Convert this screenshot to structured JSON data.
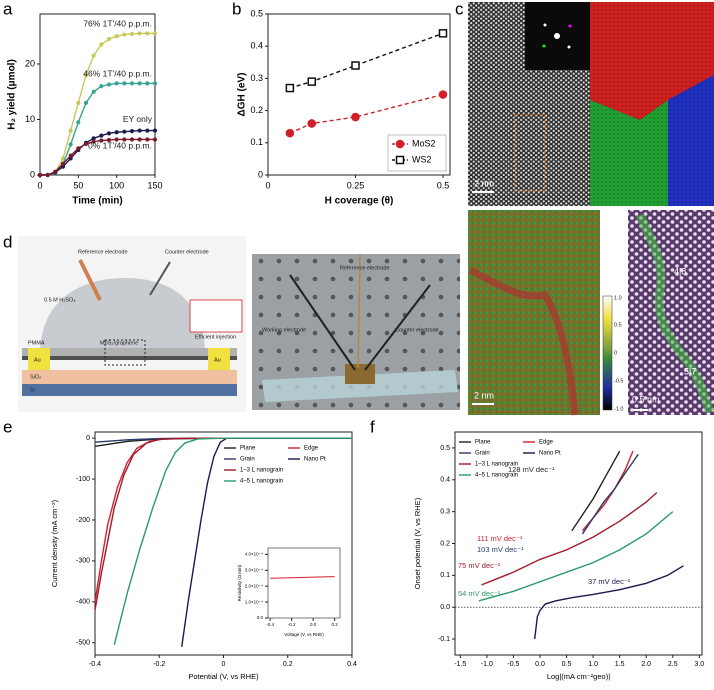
{
  "panel_labels": [
    "a",
    "b",
    "c",
    "d",
    "e",
    "f"
  ],
  "chart_data": [
    {
      "type": "line",
      "xlabel": "Time (min)",
      "ylabel": "H₂ yield (μmol)",
      "xlim": [
        0,
        150
      ],
      "ylim": [
        0,
        29
      ],
      "xticks": [
        0,
        50,
        100,
        150
      ],
      "yticks": [
        0,
        10,
        20
      ],
      "legend": "on-line",
      "x": [
        0,
        10,
        20,
        30,
        40,
        50,
        60,
        70,
        80,
        90,
        100,
        110,
        120,
        130,
        140,
        150
      ],
      "series": [
        {
          "name": "76% 1T'/40 p.p.m.",
          "color": "#c8c85a",
          "marker": "circle",
          "values": [
            0,
            0,
            0.5,
            3,
            8,
            13,
            18,
            21.5,
            23.5,
            24.5,
            25,
            25.3,
            25.4,
            25.5,
            25.5,
            25.5
          ]
        },
        {
          "name": "46% 1T'/40 p.p.m.",
          "color": "#3aa396",
          "marker": "circle",
          "values": [
            0,
            0,
            0.4,
            2,
            5.5,
            9.5,
            13,
            15,
            16,
            16.3,
            16.5,
            16.5,
            16.5,
            16.5,
            16.5,
            16.5
          ]
        },
        {
          "name": "EY only",
          "color": "#1c1c4c",
          "marker": "circle",
          "values": [
            0,
            0,
            0.5,
            1.5,
            3,
            4.5,
            5.8,
            6.6,
            7.1,
            7.5,
            7.7,
            7.8,
            7.9,
            8,
            8,
            8
          ]
        },
        {
          "name": "0% 1T'/40 p.p.m.",
          "color": "#7a1a2a",
          "marker": "circle",
          "values": [
            0,
            0,
            0.6,
            2,
            3.5,
            4.8,
            5.6,
            6,
            6.2,
            6.3,
            6.4,
            6.4,
            6.4,
            6.4,
            6.4,
            6.4
          ]
        }
      ]
    },
    {
      "type": "line",
      "xlabel": "H coverage (θ)",
      "ylabel": "ΔGH (eV)",
      "xlim": [
        0,
        0.52
      ],
      "ylim": [
        0,
        0.5
      ],
      "xticks": [
        0,
        0.25,
        0.5
      ],
      "yticks": [
        0,
        0.1,
        0.2,
        0.3,
        0.4,
        0.5
      ],
      "legend": "lower right",
      "x": [
        0.0625,
        0.125,
        0.25,
        0.5
      ],
      "series": [
        {
          "name": "MoS2",
          "color": "#d0202a",
          "marker": "circle",
          "dashed": true,
          "values": [
            0.13,
            0.16,
            0.18,
            0.25
          ]
        },
        {
          "name": "WS2",
          "color": "#111111",
          "marker": "square",
          "dashed": true,
          "values": [
            0.27,
            0.29,
            0.34,
            0.44
          ]
        }
      ]
    },
    {
      "type": "line",
      "xlabel": "Potential (V, vs RHE)",
      "ylabel": "Current density (mA cm⁻²)",
      "xlim": [
        -0.4,
        0.4
      ],
      "ylim": [
        -530,
        15
      ],
      "xticks": [
        -0.4,
        -0.2,
        0,
        0.2,
        0.4
      ],
      "yticks": [
        -500,
        -400,
        -300,
        -200,
        -100,
        0
      ],
      "legend": "upper right",
      "series": [
        {
          "name": "Plane",
          "color": "#222222",
          "x": [
            -0.4,
            -0.3,
            -0.2,
            0,
            0.4
          ],
          "values": [
            -20,
            -8,
            -2,
            0,
            0
          ]
        },
        {
          "name": "Edge",
          "color": "#d42030",
          "x": [
            -0.4,
            -0.38,
            -0.36,
            -0.33,
            -0.3,
            -0.27,
            -0.23,
            -0.18,
            -0.1,
            0.4
          ],
          "values": [
            -400,
            -300,
            -210,
            -120,
            -60,
            -25,
            -8,
            -1,
            0,
            0
          ]
        },
        {
          "name": "Grain",
          "color": "#2a3a6a",
          "x": [
            -0.4,
            -0.3,
            -0.2,
            0,
            0.4
          ],
          "values": [
            -10,
            -4,
            -1,
            0,
            0
          ]
        },
        {
          "name": "Nano Pt",
          "color": "#1a1a50",
          "x": [
            -0.13,
            -0.11,
            -0.09,
            -0.07,
            -0.05,
            -0.03,
            -0.01,
            0.01,
            0.4
          ],
          "values": [
            -510,
            -400,
            -300,
            -200,
            -110,
            -45,
            -10,
            0,
            0
          ]
        },
        {
          "name": "1–3 L nanograin",
          "color": "#a01a2a",
          "x": [
            -0.4,
            -0.38,
            -0.36,
            -0.34,
            -0.31,
            -0.28,
            -0.24,
            -0.2,
            -0.1,
            0.4
          ],
          "values": [
            -420,
            -330,
            -250,
            -170,
            -90,
            -40,
            -12,
            -3,
            0,
            0
          ]
        },
        {
          "name": "4–5 L nanograin",
          "color": "#2a9a6a",
          "x": [
            -0.34,
            -0.3,
            -0.26,
            -0.22,
            -0.18,
            -0.15,
            -0.12,
            -0.08,
            0,
            0.4
          ],
          "values": [
            -505,
            -380,
            -270,
            -170,
            -80,
            -35,
            -12,
            -2,
            0,
            0
          ]
        }
      ]
    },
    {
      "type": "line",
      "xlabel": "Voltage (V, vs RHE)",
      "ylabel": "Resistivity (Ω mm)",
      "xlim": [
        -0.42,
        0.25
      ],
      "ylim": [
        0,
        0.00044
      ],
      "xticks": [
        -0.4,
        -0.2,
        {
          "value": 0,
          "label": "0.0"
        },
        0.2
      ],
      "yticks": [
        {
          "value": 0,
          "label": "0.0"
        },
        {
          "value": 0.0001,
          "label": "1.0×10⁻⁴"
        },
        {
          "value": 0.0002,
          "label": "2.0×10⁻⁴"
        },
        {
          "value": 0.0003,
          "label": "3.0×10⁻⁴"
        },
        {
          "value": 0.0004,
          "label": "4.0×10⁻⁴"
        }
      ],
      "series": [
        {
          "color": "#d42030",
          "x": [
            -0.4,
            -0.2,
            0,
            0.2
          ],
          "values": [
            0.00025,
            0.000253,
            0.000257,
            0.00026
          ]
        }
      ]
    },
    {
      "type": "line",
      "xlabel": "Log|(mA cm⁻²geo)|",
      "ylabel": "Onset potential (V, vs RHE)",
      "xlim": [
        -1.6,
        3.05
      ],
      "ylim": [
        -0.15,
        0.55
      ],
      "xticks": [
        -1.5,
        {
          "value": -1,
          "label": "-1.0"
        },
        -0.5,
        {
          "value": 0,
          "label": "0.0"
        },
        0.5,
        {
          "value": 1,
          "label": "1.0"
        },
        1.5,
        {
          "value": 2,
          "label": "2.0"
        },
        2.5,
        {
          "value": 3,
          "label": "3.0"
        }
      ],
      "yticks": [
        -0.1,
        {
          "value": 0,
          "label": "0.0"
        },
        0.1,
        0.2,
        0.3,
        0.4,
        0.5
      ],
      "legend": "upper left",
      "reference_line": 0,
      "series": [
        {
          "name": "Plane",
          "color": "#222222",
          "x": [
            0.6,
            0.8,
            1.0,
            1.2,
            1.4,
            1.5
          ],
          "values": [
            0.24,
            0.29,
            0.34,
            0.4,
            0.46,
            0.49
          ]
        },
        {
          "name": "Edge",
          "color": "#d42030",
          "x": [
            0.8,
            1.0,
            1.2,
            1.4,
            1.6,
            1.75
          ],
          "values": [
            0.24,
            0.28,
            0.32,
            0.37,
            0.43,
            0.49
          ]
        },
        {
          "name": "Grain",
          "color": "#2a3a6a",
          "x": [
            0.8,
            1.0,
            1.2,
            1.4,
            1.6,
            1.85
          ],
          "values": [
            0.23,
            0.28,
            0.33,
            0.37,
            0.42,
            0.48
          ]
        },
        {
          "name": "Nano Pt",
          "color": "#1a1a50",
          "x": [
            -0.1,
            -0.05,
            0,
            0.1,
            0.3,
            0.6,
            1,
            1.5,
            2,
            2.4,
            2.7
          ],
          "values": [
            -0.1,
            -0.03,
            -0.01,
            0.01,
            0.02,
            0.03,
            0.04,
            0.055,
            0.075,
            0.1,
            0.13
          ]
        },
        {
          "name": "1–3 L nanograin",
          "color": "#a01a2a",
          "x": [
            -1.1,
            -0.5,
            0,
            0.5,
            1.0,
            1.5,
            2.0,
            2.2
          ],
          "values": [
            0.07,
            0.11,
            0.15,
            0.18,
            0.22,
            0.27,
            0.33,
            0.36
          ]
        },
        {
          "name": "4–5 L nanograin",
          "color": "#2a9a6a",
          "x": [
            -1.15,
            -0.5,
            0,
            0.5,
            1.0,
            1.5,
            2.0,
            2.5
          ],
          "values": [
            0.02,
            0.05,
            0.08,
            0.11,
            0.14,
            0.18,
            0.23,
            0.3
          ]
        }
      ],
      "annotations": [
        "128 mV dec⁻¹",
        "111 mV dec⁻¹",
        "103 mV dec⁻¹",
        "75 mV dec⁻¹",
        "54 mV dec⁻¹",
        "37 mV dec⁻¹"
      ]
    }
  ],
  "panel_c": {
    "scale_bars": [
      "2 nm",
      "2 nm",
      "0.5 nm"
    ],
    "defects": [
      "4|8",
      "5|7"
    ],
    "colorbar_ticks": [
      "1.0",
      "0.5",
      "0",
      "-0.5",
      "-1.0"
    ]
  },
  "panel_d": {
    "schematic": [
      "Reference electrode",
      "Counter electrode",
      "0.5 M H₂SO₄",
      "MoS₂/graphene",
      "PMMA",
      "Au",
      "Au",
      "SiO₂",
      "Si",
      "Efficient injection"
    ],
    "photo": [
      "Reference electrode",
      "Working electrode",
      "Counter electrode"
    ]
  }
}
